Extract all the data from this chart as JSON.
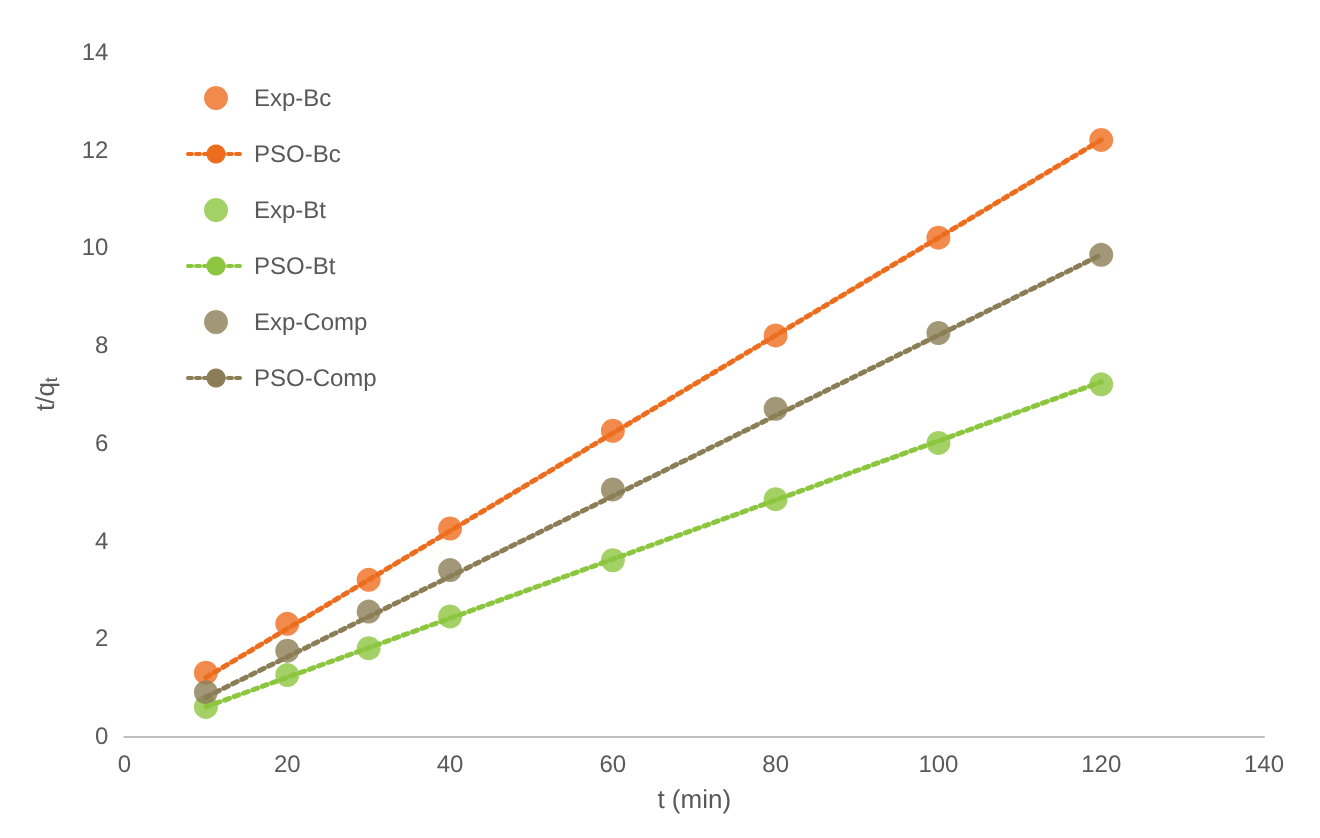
{
  "chart_data": {
    "type": "scatter",
    "xlabel": "t (min)",
    "ylabel": "t/q$_{t}$",
    "xlim": [
      0,
      140
    ],
    "xticks": [
      0,
      20,
      40,
      60,
      80,
      100,
      120,
      140
    ],
    "ylim": [
      0,
      14
    ],
    "yticks": [
      0,
      2,
      4,
      6,
      8,
      10,
      12,
      14
    ],
    "grid": false,
    "legend": "top left",
    "series": [
      {
        "name": "Exp-Bc",
        "marker": "circle",
        "color": "#ed6d1e",
        "x": [
          10,
          20,
          30,
          40,
          60,
          80,
          100,
          120
        ],
        "values": [
          1.3,
          2.3,
          3.2,
          4.25,
          6.25,
          8.2,
          10.2,
          12.2
        ]
      },
      {
        "name": "PSO-Bc",
        "type": "line",
        "marker": "none",
        "line_style": "dotted",
        "color": "#ed6d1e",
        "x": [
          10,
          120
        ],
        "values": [
          1.2,
          12.2
        ]
      },
      {
        "name": "Exp-Bt",
        "marker": "circle",
        "color": "#8cc63f",
        "x": [
          10,
          20,
          30,
          40,
          60,
          80,
          100,
          120
        ],
        "values": [
          0.6,
          1.25,
          1.8,
          2.45,
          3.6,
          4.85,
          6.0,
          7.2
        ]
      },
      {
        "name": "PSO-Bt",
        "type": "line",
        "marker": "none",
        "line_style": "dotted",
        "color": "#8cc63f",
        "x": [
          10,
          120
        ],
        "values": [
          0.6,
          7.25
        ]
      },
      {
        "name": "Exp-Comp",
        "marker": "circle",
        "color": "#8b7d55",
        "x": [
          10,
          20,
          30,
          40,
          60,
          80,
          100,
          120
        ],
        "values": [
          0.9,
          1.75,
          2.55,
          3.4,
          5.05,
          6.7,
          8.25,
          9.85
        ]
      },
      {
        "name": "PSO-Comp",
        "type": "line",
        "marker": "none",
        "line_style": "dotted",
        "color": "#8b7d55",
        "x": [
          10,
          120
        ],
        "values": [
          0.8,
          9.85
        ]
      }
    ]
  }
}
